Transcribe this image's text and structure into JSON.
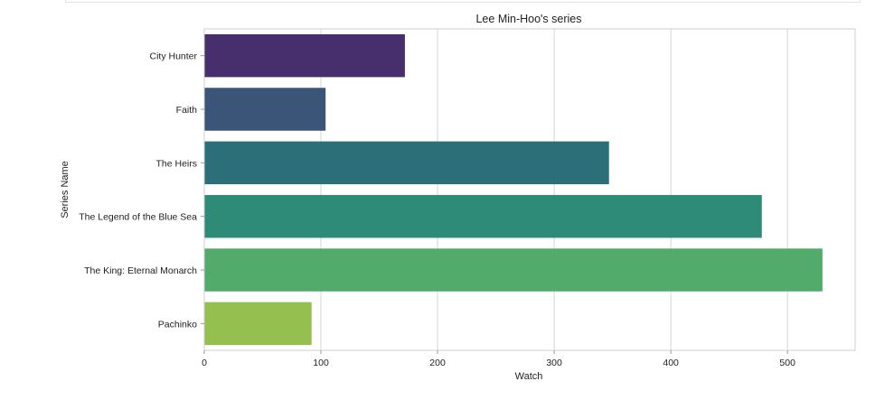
{
  "chart_data": {
    "type": "bar",
    "orientation": "horizontal",
    "title": "Lee Min-Hoo's series",
    "xlabel": "Watch",
    "ylabel": "Series Name",
    "categories": [
      "City Hunter",
      "Faith",
      "The Heirs",
      "The Legend of the Blue Sea",
      "The King: Eternal Monarch",
      "Pachinko"
    ],
    "values": [
      172,
      104,
      347,
      478,
      530,
      92
    ],
    "colors": [
      "#472f6e",
      "#3b5578",
      "#2d6f78",
      "#2e8b78",
      "#53ab6b",
      "#95c04f"
    ],
    "xlim": [
      0,
      558
    ],
    "xticks": [
      0,
      100,
      200,
      300,
      400,
      500
    ],
    "grid": true,
    "legend": "none"
  }
}
